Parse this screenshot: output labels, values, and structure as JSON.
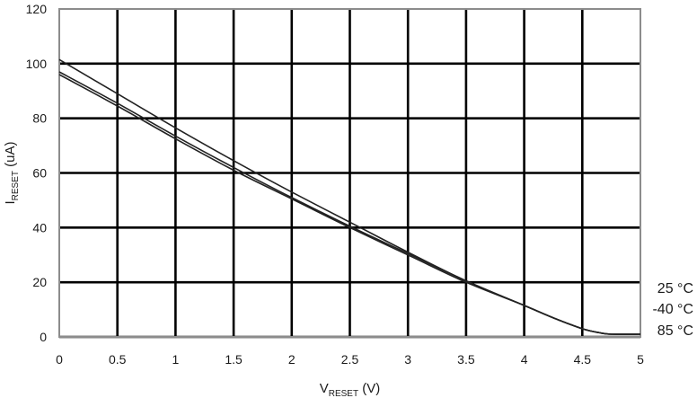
{
  "chart_data": {
    "type": "line",
    "xlabel": {
      "main": "V",
      "sub": "RESET",
      "unit": " (V)"
    },
    "ylabel": {
      "main": "I",
      "sub": "RESET",
      "unit": " (uA)"
    },
    "xlim": [
      0,
      5
    ],
    "ylim": [
      0,
      120
    ],
    "xticks": [
      "0",
      "0.5",
      "1",
      "1.5",
      "2",
      "2.5",
      "3",
      "3.5",
      "4",
      "4.5",
      "5"
    ],
    "yticks": [
      "0",
      "20",
      "40",
      "60",
      "80",
      "100",
      "120"
    ],
    "grid": true,
    "series": [
      {
        "name": "25 °C",
        "x": [
          0,
          0.5,
          1,
          1.5,
          2,
          2.5,
          3,
          3.5,
          4,
          4.25,
          4.5,
          4.65,
          4.75,
          5
        ],
        "y": [
          101.5,
          89,
          76.5,
          64.5,
          53,
          42,
          31,
          20.5,
          11.5,
          7,
          3,
          1.5,
          1,
          1
        ]
      },
      {
        "name": "-40 °C",
        "x": [
          0,
          0.5,
          1,
          1.5,
          2,
          2.5,
          3,
          3.5,
          4,
          4.25,
          4.5,
          4.65,
          4.75,
          5
        ],
        "y": [
          97,
          85.5,
          73.5,
          62,
          51,
          40.5,
          30.5,
          20.5,
          11.5,
          7,
          3,
          1.5,
          1,
          1
        ]
      },
      {
        "name": "85 °C",
        "x": [
          0,
          0.5,
          1,
          1.5,
          2,
          2.5,
          3,
          3.5,
          4,
          4.25,
          4.5,
          4.65,
          4.75,
          5
        ],
        "y": [
          96,
          84.5,
          72.5,
          61,
          50.5,
          40,
          30,
          20,
          11.5,
          7,
          3,
          1.5,
          1,
          1
        ]
      }
    ]
  }
}
